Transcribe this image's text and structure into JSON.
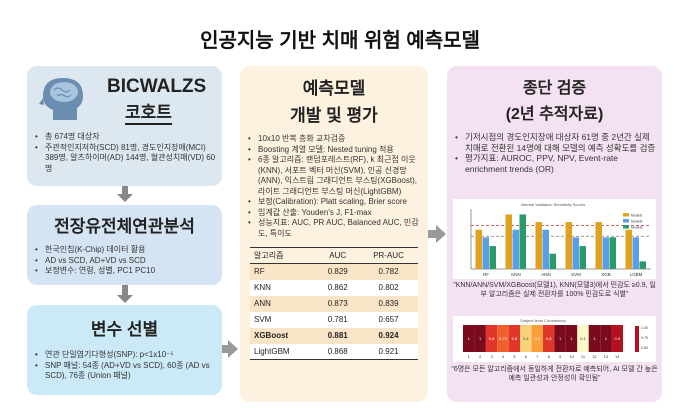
{
  "title": "인공지능 기반 치매 위험 예측모델",
  "cohort": {
    "name": "BICWALZS",
    "subtitle": "코호트",
    "icon": "brain-head-icon",
    "bullets": [
      "총 674명 대상자",
      "주관적인지저하(SCD) 81명, 경도인지장애(MCI) 389명, 알츠하이머(AD) 144명, 혈관성치매(VD) 60명"
    ]
  },
  "gwas": {
    "title": "전장유전체연관분석",
    "bullets": [
      "한국인칩(K-Chip) 데이터 활용",
      "AD vs SCD, AD+VD vs SCD",
      "보정변수: 연령, 성별, PC1 PC10"
    ]
  },
  "selection": {
    "title": "변수 선별",
    "bullets": [
      "연관 단일염기다형성(SNP): p<1x10⁻⁵",
      "SNP 패널: 54종 (AD+VD vs SCD), 60종 (AD vs SCD), 76종 (Union 패널)"
    ]
  },
  "model": {
    "title1": "예측모델",
    "title2": "개발 및 평가",
    "bullets": [
      "10x10 반복 층화 교차검증",
      "Boosting 계열 모델: Nested tuning 적용",
      "6종 알고리즘: 랜덤포레스트(RF), k 최근접 이웃(KNN), 서포트 벡터 머신(SVM), 인공 신경망(ANN), 익스트림 그래디언트 부스팅(XGBoost), 라이트 그래디언트 부스팅 머신(LightGBM)",
      "보정(Calibration): Platt scaling, Brier score",
      "임계값 산출: Youden's J, F1-max",
      "성능지표: AUC, PR AUC, Balanced AUC, 민감도, 특이도"
    ],
    "table": {
      "headers": [
        "알고리즘",
        "AUC",
        "PR-AUC"
      ],
      "rows": [
        [
          "RF",
          "0.829",
          "0.782"
        ],
        [
          "KNN",
          "0.862",
          "0.802"
        ],
        [
          "ANN",
          "0.873",
          "0.839"
        ],
        [
          "SVM",
          "0.781",
          "0.657"
        ],
        [
          "XGBoost",
          "0.881",
          "0.924"
        ],
        [
          "LightGBM",
          "0.868",
          "0.921"
        ]
      ],
      "best_row": 4
    }
  },
  "validation": {
    "title1": "종단 검증",
    "title2": "(2년 추적자료)",
    "bullets": [
      "기저시점의 경도인지장애 대상자 61명 중 2년간 실제 치매로 전환된 14명에 대해 모델의 예측 성확도를 검증",
      "평가지표: AUROC, PPV, NPV, Event-rate enrichment trends (OR)"
    ],
    "caption1": "\"KNN/ANN/SVM/XGBoost(모델1), KNN(모델3)에서 민감도 ≥0.9, 일부 알고리즘은 실제 전환자를 100% 민감도로 식별\"",
    "caption2": "\"6명은 모든 알고리즘에서 동일하게 전환자로 예측되어, AI 모델 간 높은 예측 일관성과 안정성이 확인됨\""
  },
  "chart_data": [
    {
      "type": "bar",
      "title": "Internal Validation Sensitivity Scores",
      "categories": [
        "RF",
        "KNN",
        "ANN",
        "SVM",
        "XGB",
        "LGBM"
      ],
      "series": [
        {
          "name": "Model1",
          "color": "#e0a020",
          "values": [
            0.86,
            1.0,
            0.93,
            0.93,
            0.93,
            0.86
          ]
        },
        {
          "name": "Model2",
          "color": "#5b9ee8",
          "values": [
            0.79,
            0.86,
            0.86,
            0.79,
            0.79,
            0.79
          ]
        },
        {
          "name": "Model3",
          "color": "#2a9a6a",
          "values": [
            0.71,
            1.0,
            0.64,
            0.71,
            0.79,
            0.57
          ]
        }
      ],
      "ylim": [
        0.5,
        1.05
      ],
      "ref_lines": [
        0.9,
        0.8
      ]
    },
    {
      "type": "heatmap",
      "title": "Subject-level Consistency",
      "x": [
        "1",
        "2",
        "3",
        "4",
        "5",
        "6",
        "7",
        "8",
        "9",
        "10",
        "11",
        "12",
        "13",
        "14"
      ],
      "values": [
        1,
        1,
        0.8,
        0.75,
        0.8,
        0.4,
        0.6,
        0.8,
        1,
        1,
        0.1,
        1,
        1,
        0.9
      ],
      "colorbar": [
        "1.00",
        "0.75",
        "0.50"
      ]
    }
  ]
}
